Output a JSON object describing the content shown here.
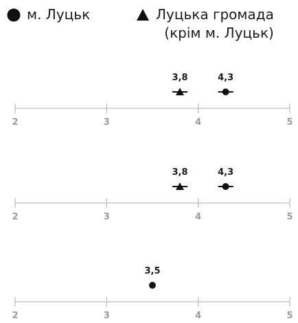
{
  "legend": {
    "city": {
      "label": "м. Луцьк",
      "marker": "circle"
    },
    "hromada": {
      "label_line1": "Луцька громада",
      "label_line2": "(крім м. Луцьк)",
      "marker": "triangle"
    }
  },
  "colors": {
    "marker": "#111111",
    "axis": "#bdbdbd",
    "tick_label": "#9a9a9a",
    "value_label": "#1a1a1a"
  },
  "chart_data": [
    {
      "type": "scatter",
      "xlim": [
        2,
        5
      ],
      "ticks": [
        2,
        3,
        4,
        5
      ],
      "series": [
        {
          "name": "Луцька громада (крім м. Луцьк)",
          "marker": "triangle",
          "value": 3.8,
          "label": "3,8",
          "error_bar": true
        },
        {
          "name": "м. Луцьк",
          "marker": "circle",
          "value": 4.3,
          "label": "4,3",
          "error_bar": true
        }
      ]
    },
    {
      "type": "scatter",
      "xlim": [
        2,
        5
      ],
      "ticks": [
        2,
        3,
        4,
        5
      ],
      "series": [
        {
          "name": "Луцька громада (крім м. Луцьк)",
          "marker": "triangle",
          "value": 3.8,
          "label": "3,8",
          "error_bar": true
        },
        {
          "name": "м. Луцьк",
          "marker": "circle",
          "value": 4.3,
          "label": "4,3",
          "error_bar": true
        }
      ]
    },
    {
      "type": "scatter",
      "xlim": [
        2,
        5
      ],
      "ticks": [
        2,
        3,
        4,
        5
      ],
      "series": [
        {
          "name": "м. Луцьк",
          "marker": "circle",
          "value": 3.5,
          "label": "3,5",
          "error_bar": false
        }
      ]
    }
  ]
}
